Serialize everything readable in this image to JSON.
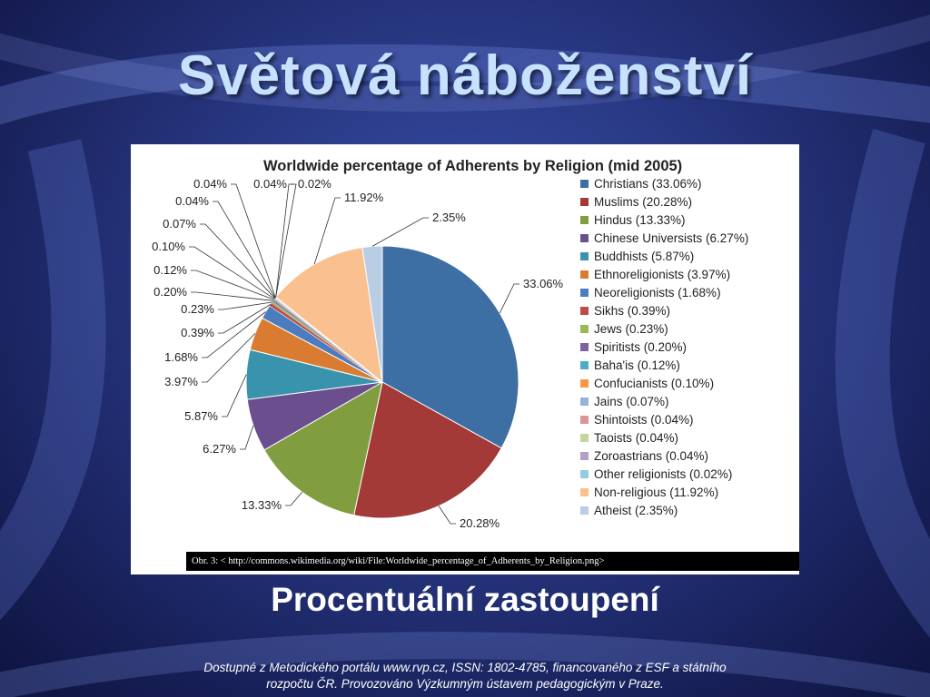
{
  "slide": {
    "title": "Světová náboženství",
    "subtitle": "Procentuální zastoupení",
    "caption": "Obr. 3: < http://commons.wikimedia.org/wiki/File:Worldwide_percentage_of_Adherents_by_Religion.png>",
    "footer_line1": "Dostupné z Metodického portálu www.rvp.cz, ISSN: 1802-4785, financovaného z ESF a státního",
    "footer_line2": "rozpočtu ČR. Provozováno Výzkumným ústavem pedagogickým v Praze."
  },
  "chart_data": {
    "type": "pie",
    "title": "Worldwide percentage of Adherents by Religion (mid 2005)",
    "legend_position": "right",
    "categories": [
      "Christians",
      "Muslims",
      "Hindus",
      "Chinese Universists",
      "Buddhists",
      "Ethnoreligionists",
      "Neoreligionists",
      "Sikhs",
      "Jews",
      "Spiritists",
      "Baha'is",
      "Confucianists",
      "Jains",
      "Shintoists",
      "Taoists",
      "Zoroastrians",
      "Other religionists",
      "Non-religious",
      "Atheist"
    ],
    "values": [
      33.06,
      20.28,
      13.33,
      6.27,
      5.87,
      3.97,
      1.68,
      0.39,
      0.23,
      0.2,
      0.12,
      0.1,
      0.07,
      0.04,
      0.04,
      0.04,
      0.02,
      11.92,
      2.35
    ],
    "data_labels": [
      "33.06%",
      "20.28%",
      "13.33%",
      "6.27%",
      "5.87%",
      "3.97%",
      "1.68%",
      "0.39%",
      "0.23%",
      "0.20%",
      "0.12%",
      "0.10%",
      "0.07%",
      "0.04%",
      "0.04%",
      "0.04%",
      "0.02%",
      "11.92%",
      "2.35%"
    ],
    "legend_labels": [
      "Christians (33.06%)",
      "Muslims (20.28%)",
      "Hindus (13.33%)",
      "Chinese Universists (6.27%)",
      "Buddhists (5.87%)",
      "Ethnoreligionists (3.97%)",
      "Neoreligionists (1.68%)",
      "Sikhs (0.39%)",
      "Jews (0.23%)",
      "Spiritists (0.20%)",
      "Baha'is (0.12%)",
      "Confucianists (0.10%)",
      "Jains (0.07%)",
      "Shintoists (0.04%)",
      "Taoists (0.04%)",
      "Zoroastrians (0.04%)",
      "Other religionists (0.02%)",
      "Non-religious (11.92%)",
      "Atheist (2.35%)"
    ],
    "colors": [
      "#3d6ea4",
      "#a33a37",
      "#809d3f",
      "#6a4e8e",
      "#3a93ad",
      "#d97b30",
      "#4a7cbf",
      "#be4b48",
      "#98b954",
      "#7f63a1",
      "#4cacc6",
      "#f79646",
      "#94b3d7",
      "#da9694",
      "#c3d69b",
      "#b2a1c7",
      "#93cddd",
      "#fac090",
      "#b9cde5"
    ]
  }
}
